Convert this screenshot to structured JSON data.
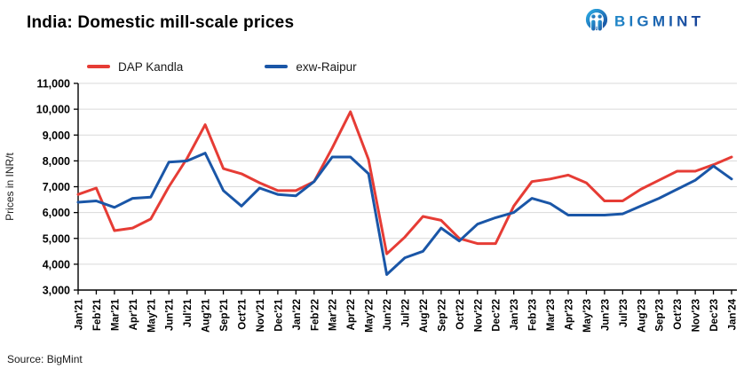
{
  "header": {
    "title": "India: Domestic mill-scale prices"
  },
  "logo": {
    "text": "BIGMINT",
    "icon": "bigmint-people-circle-icon",
    "gradient_start": "#2BAAE2",
    "gradient_end": "#1A4E9E"
  },
  "legend": [
    {
      "label": "DAP Kandla",
      "color": "#e63c35"
    },
    {
      "label": "exw-Raipur",
      "color": "#1a56a7"
    }
  ],
  "footer": {
    "source": "Source: BigMint"
  },
  "chart_data": {
    "type": "line",
    "title": "India: Domestic mill-scale prices",
    "xlabel": "",
    "ylabel": "Prices in INR/t",
    "ylim": [
      3000,
      11000
    ],
    "ytick_step": 1000,
    "grid": "horizontal",
    "legend_position": "top-left",
    "axis_color": "#000000",
    "gridline_color": "#d9d9d9",
    "categories": [
      "Jan'21",
      "Feb'21",
      "Mar'21",
      "Apr'21",
      "May'21",
      "Jun'21",
      "Jul'21",
      "Aug'21",
      "Sep'21",
      "Oct'21",
      "Nov'21",
      "Dec'21",
      "Jan'22",
      "Feb'22",
      "Mar'22",
      "Apr'22",
      "May'22",
      "Jun'22",
      "Jul'22",
      "Aug'22",
      "Sep'22",
      "Oct'22",
      "Nov'22",
      "Dec'22",
      "Jan'23",
      "Feb'23",
      "Mar'23",
      "Apr'23",
      "May'23",
      "Jun'23",
      "Jul'23",
      "Aug'23",
      "Sep'23",
      "Oct'23",
      "Nov'23",
      "Dec'23",
      "Jan'24"
    ],
    "series": [
      {
        "name": "DAP Kandla",
        "color": "#e63c35",
        "values": [
          6700,
          6950,
          5300,
          5400,
          5750,
          7000,
          8100,
          9400,
          7700,
          7500,
          7150,
          6850,
          6850,
          7200,
          8500,
          9900,
          8050,
          4400,
          5050,
          5850,
          5700,
          5000,
          4800,
          4800,
          6250,
          7200,
          7300,
          7450,
          7150,
          6450,
          6450,
          6900,
          7250,
          7600,
          7600,
          7850,
          8150
        ]
      },
      {
        "name": "exw-Raipur",
        "color": "#1a56a7",
        "values": [
          6400,
          6450,
          6200,
          6550,
          6600,
          7950,
          8000,
          8300,
          6850,
          6250,
          6950,
          6700,
          6650,
          7200,
          8150,
          8150,
          7500,
          3600,
          4250,
          4500,
          5400,
          4900,
          5550,
          5800,
          6000,
          6550,
          6350,
          5900,
          5900,
          5900,
          5950,
          6250,
          6550,
          6900,
          7250,
          7800,
          7300
        ]
      }
    ]
  }
}
